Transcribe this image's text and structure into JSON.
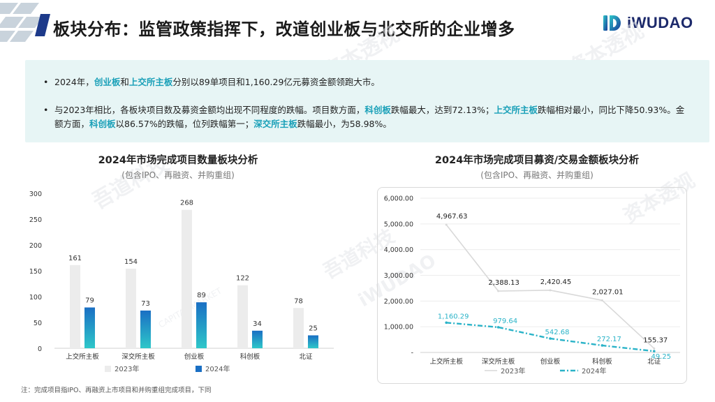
{
  "header": {
    "title": "板块分布：监管政策指挥下，改道创业板与北交所的企业增多",
    "brand": "iWUDAO"
  },
  "summary": {
    "bullets": [
      {
        "parts": [
          {
            "t": "2024年，"
          },
          {
            "t": "创业板",
            "hl": true
          },
          {
            "t": "和"
          },
          {
            "t": "上交所主板",
            "hl": true
          },
          {
            "t": "分别以89单项目和1,160.29亿元募资金额领跑大市。"
          }
        ]
      },
      {
        "parts": [
          {
            "t": "与2023年相比，各板块项目数及募资金额均出现不同程度的跌幅。项目数方面，"
          },
          {
            "t": "科创板",
            "hl": true
          },
          {
            "t": "跌幅最大，达到72.13%；"
          },
          {
            "t": "上交所主板",
            "hl": true
          },
          {
            "t": "跌幅相对最小，同比下降50.93%。金额方面，"
          },
          {
            "t": "科创板",
            "hl": true
          },
          {
            "t": "以86.57%的跌幅，位列跌幅第一；"
          },
          {
            "t": "深交所主板",
            "hl": true
          },
          {
            "t": "跌幅最小，为58.98%。"
          }
        ]
      }
    ]
  },
  "colors": {
    "accent": "#1aa0b8",
    "bar2023": "#ececec",
    "bar2024_top": "#1a6fc4",
    "bar2024_bottom": "#2ec7c9",
    "line2023": "#d9d9d9",
    "line2024": "#2ab3c8"
  },
  "chart_data": [
    {
      "type": "bar",
      "title": "2024年市场完成项目数量板块分析",
      "subtitle": "(包含IPO、再融资、并购重组)",
      "categories": [
        "上交所主板",
        "深交所主板",
        "创业板",
        "科创板",
        "北证"
      ],
      "series": [
        {
          "name": "2023年",
          "values": [
            161,
            154,
            268,
            122,
            78
          ]
        },
        {
          "name": "2024年",
          "values": [
            79,
            73,
            89,
            34,
            25
          ]
        }
      ],
      "yticks": [
        "0",
        "50",
        "100",
        "150",
        "200",
        "250",
        "300"
      ],
      "ylim": [
        0,
        300
      ],
      "legend": "bottom"
    },
    {
      "type": "line",
      "title": "2024年市场完成项目募资/交易金额板块分析",
      "subtitle": "(包含IPO、再融资、并购重组)",
      "categories": [
        "上交所主板",
        "深交所主板",
        "创业板",
        "科创板",
        "北证"
      ],
      "series": [
        {
          "name": "2023年",
          "values": [
            4967.63,
            2388.13,
            2420.45,
            2027.01,
            155.37
          ],
          "labels": [
            "4,967.63",
            "2,388.13",
            "2,420.45",
            "2,027.01",
            "155.37"
          ]
        },
        {
          "name": "2024年",
          "values": [
            1160.29,
            979.64,
            542.68,
            272.17,
            49.25
          ],
          "labels": [
            "1,160.29",
            "979.64",
            "542.68",
            "272.17",
            "49.25"
          ]
        }
      ],
      "yticks": [
        "-",
        "1,000.00",
        "2,000.00",
        "3,000.00",
        "4,000.00",
        "5,000.00",
        "6,000.00"
      ],
      "ylim": [
        0,
        6000
      ],
      "legend": "bottom"
    }
  ],
  "footnote": "注：完成项目指IPO、再融资上市项目和并购重组完成项目，下同",
  "watermark": [
    "吾道科技",
    "iWUDAO",
    "资本透视",
    "CAPITAL MARKET"
  ]
}
